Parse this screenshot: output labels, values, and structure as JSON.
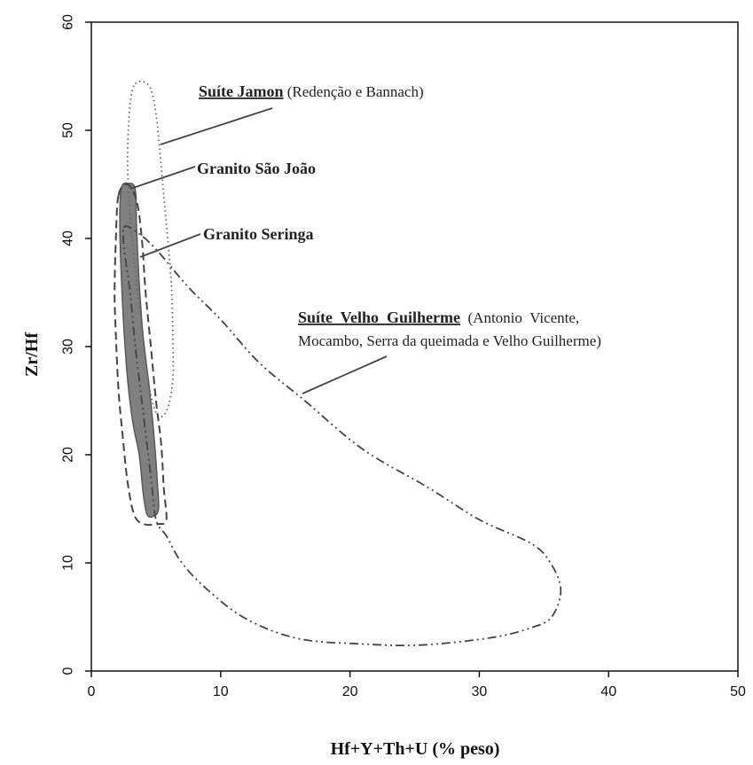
{
  "chart_data": {
    "type": "scatter",
    "title": "",
    "xlabel": "Hf+Y+Th+U (% peso)",
    "ylabel": "Zr/Hf",
    "xlim": [
      0,
      50
    ],
    "ylim": [
      0,
      60
    ],
    "xticks": [
      0,
      10,
      20,
      30,
      40,
      50
    ],
    "yticks": [
      0,
      10,
      20,
      30,
      40,
      50,
      60
    ],
    "grid": false,
    "legend": "none",
    "fields": [
      {
        "name": "Suíte Jamon",
        "style": "dotted",
        "color": "#666666",
        "points": [
          [
            3.4,
            54.3
          ],
          [
            4.0,
            54.5
          ],
          [
            4.6,
            53.8
          ],
          [
            5.0,
            51.5
          ],
          [
            5.3,
            48.0
          ],
          [
            5.6,
            44.0
          ],
          [
            5.9,
            40.0
          ],
          [
            6.2,
            35.5
          ],
          [
            6.3,
            31.0
          ],
          [
            6.3,
            27.0
          ],
          [
            5.9,
            24.3
          ],
          [
            5.3,
            23.5
          ],
          [
            4.8,
            24.5
          ],
          [
            4.4,
            27.0
          ],
          [
            4.0,
            31.0
          ],
          [
            3.5,
            36.0
          ],
          [
            3.0,
            42.0
          ],
          [
            2.8,
            47.0
          ],
          [
            2.9,
            51.0
          ],
          [
            3.1,
            53.3
          ]
        ]
      },
      {
        "name": "Granito Seringa",
        "style": "dashed",
        "color": "#444444",
        "points": [
          [
            2.1,
            44.0
          ],
          [
            2.8,
            45.0
          ],
          [
            3.5,
            43.5
          ],
          [
            3.9,
            40.0
          ],
          [
            4.2,
            35.0
          ],
          [
            4.6,
            30.0
          ],
          [
            5.0,
            25.0
          ],
          [
            5.4,
            21.0
          ],
          [
            5.6,
            17.0
          ],
          [
            5.8,
            14.0
          ],
          [
            5.2,
            13.6
          ],
          [
            4.0,
            13.6
          ],
          [
            3.3,
            14.5
          ],
          [
            2.8,
            17.5
          ],
          [
            2.4,
            22.0
          ],
          [
            2.1,
            26.0
          ],
          [
            1.9,
            31.0
          ],
          [
            1.8,
            35.0
          ],
          [
            1.9,
            40.0
          ]
        ]
      },
      {
        "name": "Granito São João",
        "style": "filled",
        "color": "#808080",
        "points": [
          [
            2.3,
            44.6
          ],
          [
            2.9,
            45.1
          ],
          [
            3.4,
            44.5
          ],
          [
            3.5,
            41.0
          ],
          [
            3.7,
            36.0
          ],
          [
            4.0,
            31.0
          ],
          [
            4.5,
            26.0
          ],
          [
            4.9,
            21.0
          ],
          [
            5.1,
            17.5
          ],
          [
            5.2,
            15.0
          ],
          [
            4.8,
            14.3
          ],
          [
            4.3,
            14.5
          ],
          [
            4.0,
            16.5
          ],
          [
            3.7,
            20.0
          ],
          [
            3.2,
            23.0
          ],
          [
            2.8,
            27.0
          ],
          [
            2.5,
            32.0
          ],
          [
            2.3,
            37.0
          ],
          [
            2.2,
            41.0
          ]
        ]
      },
      {
        "name": "Suíte Velho Guilherme",
        "style": "dashdotdot",
        "color": "#444444",
        "points": [
          [
            2.5,
            41.0
          ],
          [
            3.5,
            40.6
          ],
          [
            5.0,
            39.0
          ],
          [
            7.5,
            35.5
          ],
          [
            10.0,
            32.5
          ],
          [
            13.0,
            28.5
          ],
          [
            16.5,
            25.0
          ],
          [
            21.0,
            20.5
          ],
          [
            26.0,
            17.0
          ],
          [
            30.0,
            14.0
          ],
          [
            34.0,
            11.8
          ],
          [
            35.5,
            10.0
          ],
          [
            36.3,
            7.5
          ],
          [
            35.6,
            5.0
          ],
          [
            34.0,
            4.0
          ],
          [
            31.0,
            3.1
          ],
          [
            25.5,
            2.4
          ],
          [
            21.0,
            2.5
          ],
          [
            16.0,
            3.0
          ],
          [
            12.0,
            4.8
          ],
          [
            9.0,
            7.5
          ],
          [
            7.0,
            10.0
          ],
          [
            5.8,
            12.5
          ],
          [
            5.0,
            14.0
          ],
          [
            4.6,
            18.0
          ],
          [
            4.0,
            24.0
          ],
          [
            3.4,
            30.0
          ],
          [
            3.0,
            35.0
          ],
          [
            2.6,
            38.5
          ]
        ]
      }
    ],
    "annotations": [
      {
        "title": "Suíte Jamon",
        "rest": " (Redenção e Bannach)"
      },
      {
        "title": "Granito São João"
      },
      {
        "title": "Granito Seringa"
      },
      {
        "title": "Suíte  Velho  Guilherme",
        "rest": "  (Antonio  Vicente,",
        "line2": "Mocambo, Serra da queimada e Velho Guilherme)"
      }
    ]
  }
}
